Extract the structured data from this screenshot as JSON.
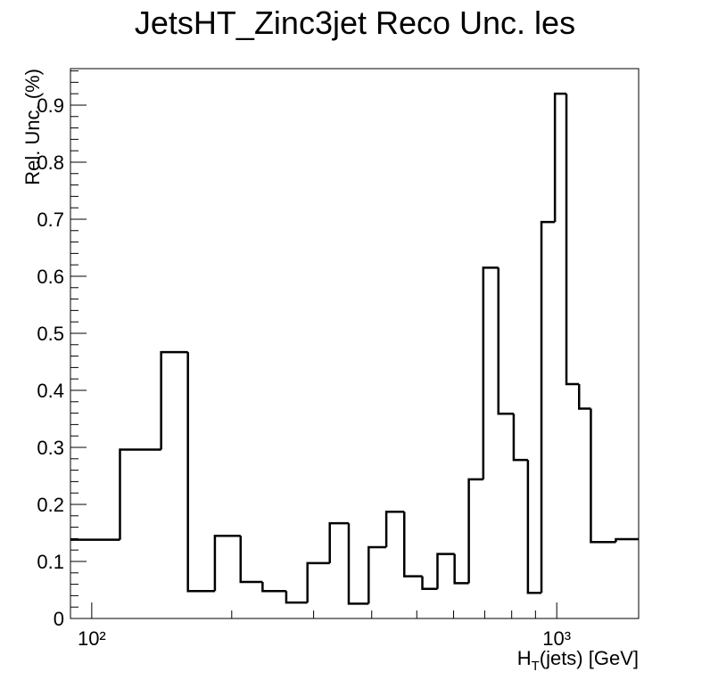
{
  "chart_data": {
    "type": "histogram",
    "title": "JetsHT_Zinc3jet Reco Unc. les",
    "ylabel": "Rel. Unc. (%)",
    "xlabel": [
      "H",
      "T",
      "(jets) [GeV]"
    ],
    "bins": [
      90,
      115,
      141,
      161,
      184,
      209,
      233,
      262,
      291,
      325,
      357,
      394,
      430,
      470,
      514,
      554,
      603,
      647,
      695,
      749,
      808,
      867,
      927,
      991,
      1049,
      1117,
      1184,
      1340,
      1500
    ],
    "values": [
      0.138,
      0.296,
      0.467,
      0.048,
      0.145,
      0.064,
      0.048,
      0.028,
      0.097,
      0.167,
      0.026,
      0.125,
      0.187,
      0.074,
      0.052,
      0.113,
      0.062,
      0.244,
      0.615,
      0.359,
      0.278,
      0.045,
      0.695,
      0.92,
      0.411,
      0.368,
      0.134,
      0.139
    ],
    "color": "#000000",
    "log_x": true,
    "xlim": [
      90,
      1500
    ],
    "ylim": [
      0,
      0.964
    ],
    "xticks": [
      {
        "value": 100,
        "label": "10²"
      },
      {
        "value": 1000,
        "label": "10³"
      }
    ],
    "xminor": [
      200,
      300,
      400,
      500,
      600,
      700,
      800,
      900
    ],
    "yticks": [
      0,
      0.1,
      0.2,
      0.3,
      0.4,
      0.5,
      0.6,
      0.7,
      0.8,
      0.9
    ],
    "yminor": [
      0.02,
      0.04,
      0.06,
      0.08,
      0.12,
      0.14,
      0.16,
      0.18,
      0.22,
      0.24,
      0.26,
      0.28,
      0.32,
      0.34,
      0.36,
      0.38,
      0.42,
      0.44,
      0.46,
      0.48,
      0.52,
      0.54,
      0.56,
      0.58,
      0.62,
      0.64,
      0.66,
      0.68,
      0.72,
      0.74,
      0.76,
      0.78,
      0.82,
      0.84,
      0.86,
      0.88,
      0.92,
      0.94,
      0.96
    ]
  }
}
